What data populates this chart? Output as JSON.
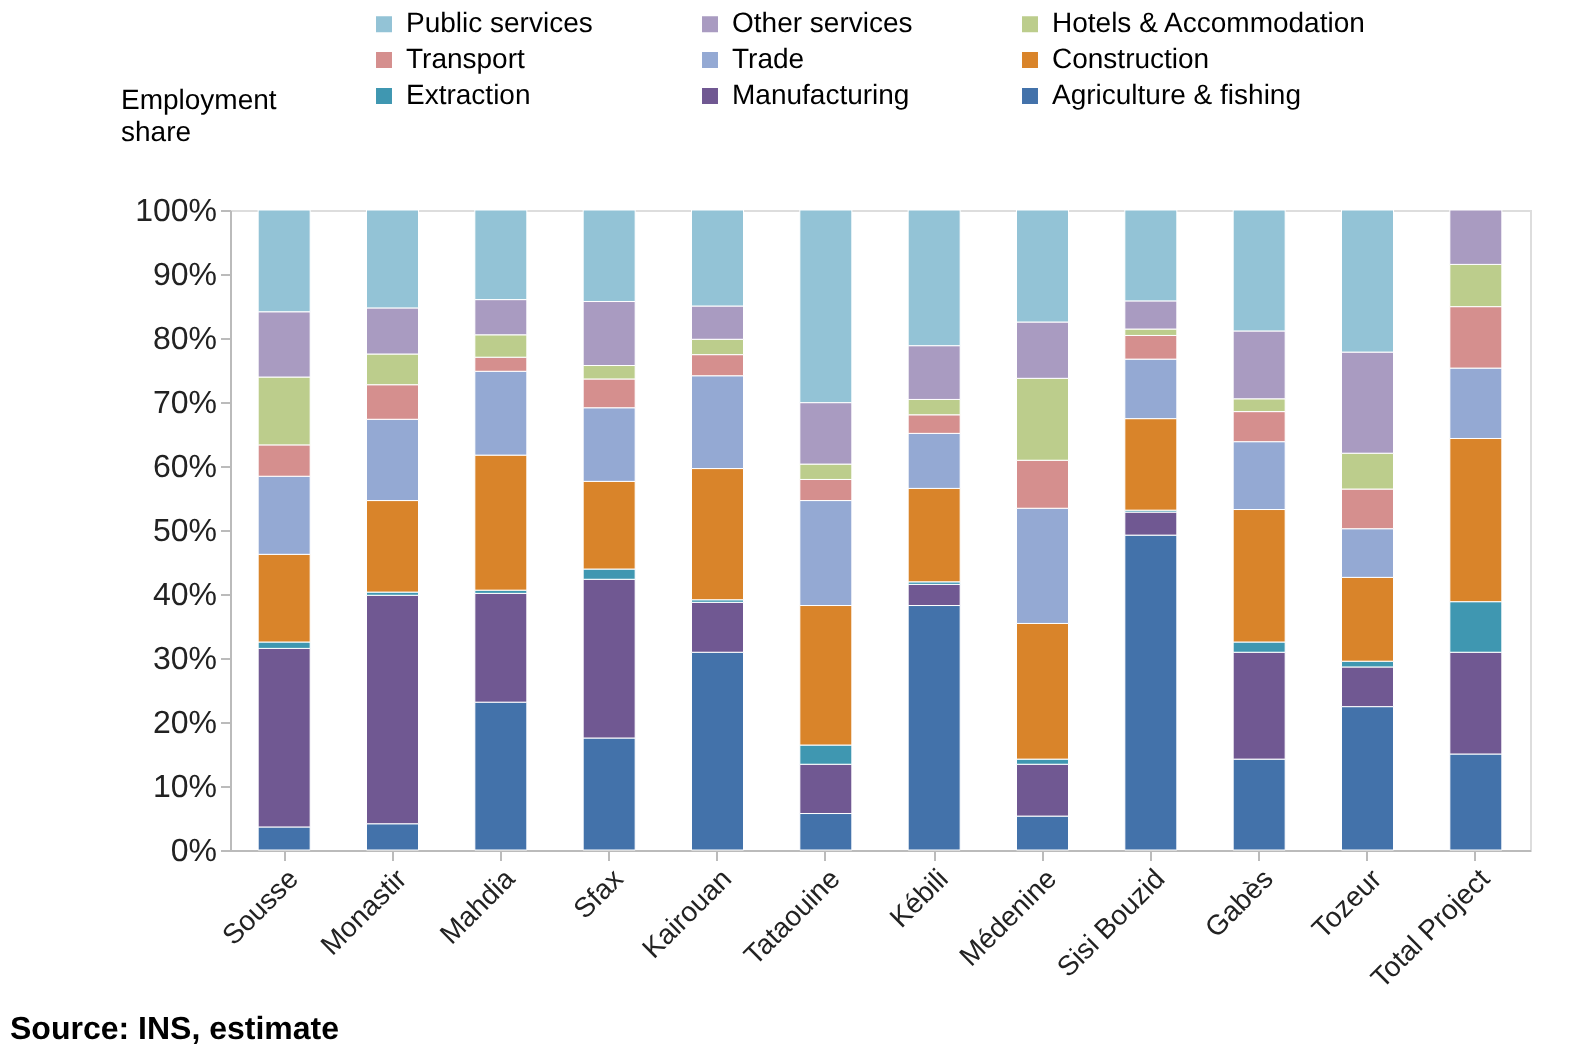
{
  "chart_data": {
    "type": "bar",
    "stacked": true,
    "ylabel": "Employment share",
    "categories": [
      "Sousse",
      "Monastir",
      "Mahdia",
      "Sfax",
      "Kairouan",
      "Tataouine",
      "Kébili",
      "Médenine",
      "Sisi Bouzid",
      "Gabès",
      "Tozeur",
      "Total Project"
    ],
    "series": [
      {
        "name": "Agriculture & fishing",
        "color": "#4372aa",
        "values": [
          3.6,
          4.1,
          23.1,
          17.5,
          30.9,
          5.7,
          38.2,
          5.3,
          49.2,
          14.2,
          22.4,
          15.0
        ]
      },
      {
        "name": "Manufacturing",
        "color": "#705892",
        "values": [
          27.9,
          35.7,
          17.0,
          24.8,
          7.8,
          7.7,
          3.3,
          8.1,
          3.6,
          16.7,
          6.2,
          15.9
        ]
      },
      {
        "name": "Extraction",
        "color": "#3f97b1",
        "values": [
          1.0,
          0.5,
          0.5,
          1.6,
          0.4,
          3.0,
          0.4,
          0.8,
          0.3,
          1.6,
          0.9,
          7.9
        ]
      },
      {
        "name": "Construction",
        "color": "#d9842a",
        "values": [
          13.7,
          14.3,
          21.1,
          13.7,
          20.5,
          21.8,
          14.6,
          21.2,
          14.3,
          20.7,
          13.1,
          25.5
        ]
      },
      {
        "name": "Trade",
        "color": "#94a9d3",
        "values": [
          12.2,
          12.7,
          13.1,
          11.5,
          14.5,
          16.4,
          8.6,
          18.0,
          9.3,
          10.6,
          7.6,
          11.0
        ]
      },
      {
        "name": "Transport",
        "color": "#d58f8e",
        "values": [
          4.9,
          5.4,
          2.2,
          4.5,
          3.3,
          3.3,
          2.9,
          7.5,
          3.7,
          4.7,
          6.2,
          9.6
        ]
      },
      {
        "name": "Hotels & Accommodation",
        "color": "#bccd8c",
        "values": [
          10.6,
          4.8,
          3.5,
          2.1,
          2.4,
          2.4,
          2.4,
          12.8,
          1.0,
          2.0,
          5.6,
          6.6
        ]
      },
      {
        "name": "Other services",
        "color": "#a99bc1",
        "values": [
          10.2,
          7.2,
          5.5,
          10.0,
          5.2,
          9.6,
          8.4,
          8.8,
          4.4,
          10.6,
          15.8,
          8.5
        ]
      },
      {
        "name": "Public services",
        "color": "#93c3d6",
        "values": [
          15.9,
          15.3,
          14.0,
          14.3,
          15.0,
          30.1,
          21.2,
          17.5,
          14.2,
          18.9,
          22.2,
          null
        ]
      }
    ],
    "ylim": [
      0,
      100
    ],
    "yticks": [
      {
        "value": 0,
        "label": "0%"
      },
      {
        "value": 10,
        "label": "10%"
      },
      {
        "value": 20,
        "label": "20%"
      },
      {
        "value": 30,
        "label": "30%"
      },
      {
        "value": 40,
        "label": "40%"
      },
      {
        "value": 50,
        "label": "50%"
      },
      {
        "value": 60,
        "label": "60%"
      },
      {
        "value": 70,
        "label": "70%"
      },
      {
        "value": 80,
        "label": "80%"
      },
      {
        "value": 90,
        "label": "90%"
      },
      {
        "value": 100,
        "label": "100%"
      }
    ],
    "grid": false,
    "legend": "top",
    "annotations": [
      "Source: INS, estimate"
    ]
  }
}
